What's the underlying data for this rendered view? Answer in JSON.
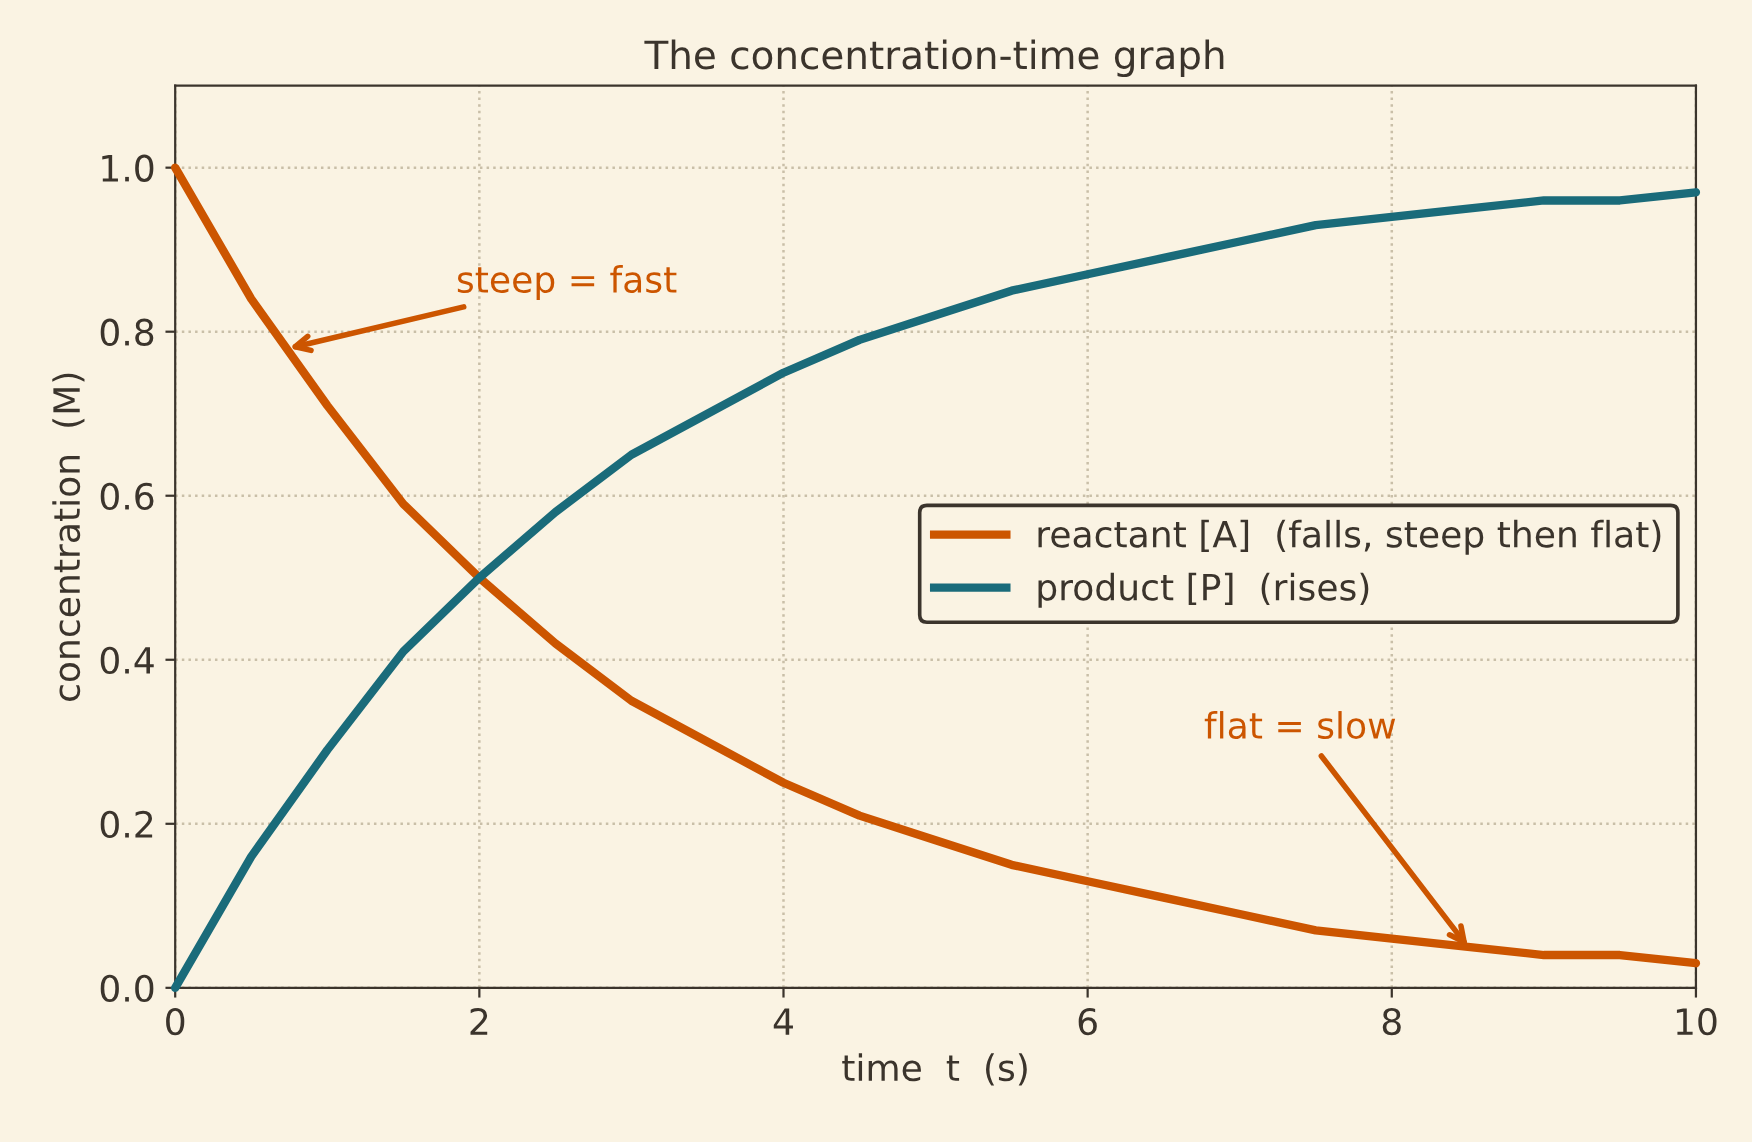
{
  "chart_data": {
    "type": "line",
    "title": "The concentration-time graph",
    "xlabel": "time  t  (s)",
    "ylabel": "concentration  (M)",
    "x": [
      0,
      0.5,
      1,
      1.5,
      2,
      2.5,
      3,
      3.5,
      4,
      4.5,
      5,
      5.5,
      6,
      6.5,
      7,
      7.5,
      8,
      8.5,
      9,
      9.5,
      10
    ],
    "series": [
      {
        "name": "reactant [A]  (falls, steep then flat)",
        "color": "#cc5500",
        "values": [
          1.0,
          0.84,
          0.71,
          0.59,
          0.5,
          0.42,
          0.35,
          0.3,
          0.25,
          0.21,
          0.18,
          0.15,
          0.13,
          0.11,
          0.09,
          0.07,
          0.06,
          0.05,
          0.04,
          0.04,
          0.03
        ]
      },
      {
        "name": "product [P]  (rises)",
        "color": "#1a6b7a",
        "values": [
          0.0,
          0.16,
          0.29,
          0.41,
          0.5,
          0.58,
          0.65,
          0.7,
          0.75,
          0.79,
          0.82,
          0.85,
          0.87,
          0.89,
          0.91,
          0.93,
          0.94,
          0.95,
          0.96,
          0.96,
          0.97
        ]
      }
    ],
    "xlim": [
      0,
      10
    ],
    "ylim": [
      0,
      1.1
    ],
    "xticks": [
      0,
      2,
      4,
      6,
      8,
      10
    ],
    "yticks": [
      {
        "value": 0,
        "label": "0.0"
      },
      {
        "value": 0.2,
        "label": "0.2"
      },
      {
        "value": 0.4,
        "label": "0.4"
      },
      {
        "value": 0.6,
        "label": "0.6"
      },
      {
        "value": 0.8,
        "label": "0.8"
      },
      {
        "value": 1.0,
        "label": "1.0"
      }
    ],
    "grid": true,
    "legend": "right",
    "line_style": "solid",
    "annotations": [
      {
        "text": "steep = fast",
        "x": 0.75,
        "y": 0.78
      },
      {
        "text": "flat = slow",
        "x": 8.5,
        "y": 0.05
      }
    ]
  }
}
